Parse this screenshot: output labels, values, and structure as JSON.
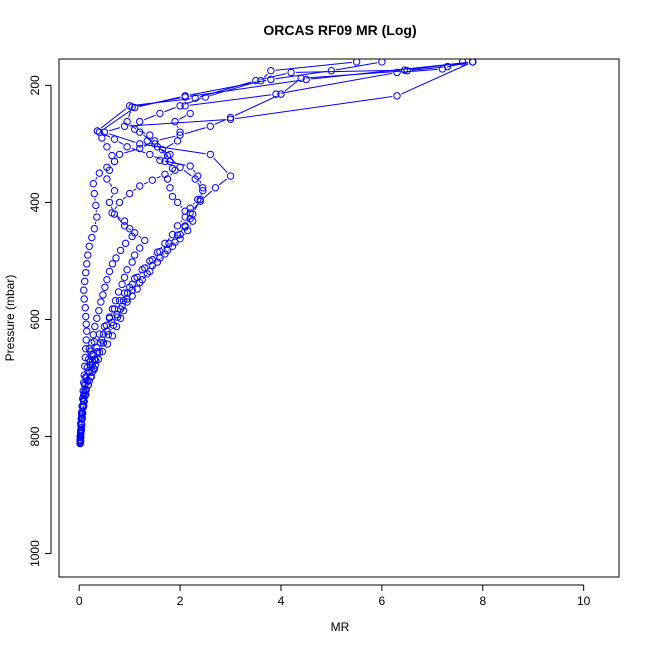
{
  "chart_data": {
    "type": "line",
    "title": "ORCAS RF09 MR (Log)",
    "xlabel": "MR",
    "ylabel": "Pressure (mbar)",
    "xlim": [
      -0.4,
      10.7
    ],
    "ylim": [
      1040,
      155
    ],
    "y_axis_inverted": true,
    "x_ticks": [
      0,
      2,
      4,
      6,
      8,
      10
    ],
    "y_ticks": [
      200,
      400,
      600,
      800,
      1000
    ],
    "grid": false,
    "legend": "none",
    "marker": "open-circle",
    "color": "#0000ff",
    "series": [
      {
        "points": [
          [
            0.02,
            812
          ],
          [
            0.03,
            808
          ],
          [
            0.02,
            800
          ],
          [
            0.03,
            792
          ],
          [
            0.04,
            785
          ],
          [
            0.03,
            778
          ],
          [
            0.04,
            770
          ],
          [
            0.05,
            758
          ],
          [
            0.06,
            748
          ],
          [
            0.08,
            738
          ],
          [
            0.1,
            725
          ],
          [
            0.12,
            710
          ],
          [
            0.14,
            700
          ],
          [
            0.18,
            688
          ],
          [
            0.22,
            678
          ],
          [
            0.26,
            672
          ],
          [
            0.3,
            668
          ],
          [
            0.25,
            660
          ],
          [
            0.2,
            650
          ],
          [
            0.3,
            638
          ],
          [
            0.4,
            625
          ],
          [
            0.5,
            612
          ],
          [
            0.6,
            598
          ],
          [
            0.7,
            582
          ],
          [
            0.8,
            568
          ],
          [
            0.9,
            555
          ],
          [
            1.0,
            545
          ],
          [
            1.1,
            530
          ],
          [
            1.25,
            515
          ],
          [
            1.4,
            500
          ],
          [
            1.55,
            485
          ],
          [
            1.7,
            470
          ],
          [
            1.85,
            455
          ],
          [
            1.95,
            440
          ],
          [
            2.1,
            425
          ],
          [
            2.2,
            410
          ],
          [
            2.35,
            395
          ],
          [
            2.45,
            380
          ],
          [
            2.3,
            360
          ],
          [
            2.0,
            340
          ],
          [
            1.75,
            320
          ],
          [
            1.5,
            300
          ],
          [
            1.2,
            280
          ],
          [
            0.95,
            262
          ],
          [
            1.05,
            237
          ],
          [
            2.1,
            220
          ],
          [
            4.5,
            190
          ],
          [
            7.8,
            160
          ]
        ]
      },
      {
        "points": [
          [
            0.02,
            810
          ],
          [
            0.03,
            800
          ],
          [
            0.04,
            790
          ],
          [
            0.06,
            770
          ],
          [
            0.08,
            750
          ],
          [
            0.12,
            730
          ],
          [
            0.18,
            712
          ],
          [
            0.24,
            698
          ],
          [
            0.3,
            685
          ],
          [
            0.22,
            672
          ],
          [
            0.28,
            660
          ],
          [
            0.35,
            648
          ],
          [
            0.45,
            635
          ],
          [
            0.55,
            620
          ],
          [
            0.65,
            605
          ],
          [
            0.75,
            592
          ],
          [
            0.85,
            578
          ],
          [
            0.95,
            565
          ],
          [
            1.05,
            550
          ],
          [
            1.2,
            537
          ],
          [
            1.35,
            522
          ],
          [
            1.45,
            508
          ],
          [
            1.6,
            495
          ],
          [
            1.75,
            482
          ],
          [
            1.9,
            468
          ],
          [
            2.0,
            455
          ],
          [
            2.1,
            442
          ],
          [
            2.2,
            428
          ],
          [
            2.1,
            415
          ],
          [
            1.95,
            400
          ],
          [
            1.85,
            390
          ],
          [
            1.8,
            375
          ],
          [
            1.75,
            360
          ],
          [
            1.9,
            345
          ],
          [
            1.8,
            330
          ],
          [
            1.65,
            310
          ],
          [
            1.95,
            295
          ],
          [
            2.0,
            280
          ],
          [
            1.9,
            262
          ],
          [
            2.2,
            248
          ],
          [
            2.1,
            235
          ],
          [
            3.9,
            215
          ],
          [
            6.3,
            178
          ],
          [
            7.2,
            172
          ],
          [
            7.6,
            160
          ]
        ]
      },
      {
        "points": [
          [
            0.02,
            805
          ],
          [
            0.03,
            795
          ],
          [
            0.05,
            780
          ],
          [
            0.07,
            760
          ],
          [
            0.1,
            740
          ],
          [
            0.14,
            720
          ],
          [
            0.2,
            705
          ],
          [
            0.26,
            690
          ],
          [
            0.32,
            678
          ],
          [
            0.38,
            668
          ],
          [
            0.46,
            655
          ],
          [
            0.56,
            642
          ],
          [
            0.66,
            628
          ],
          [
            0.74,
            612
          ],
          [
            0.82,
            598
          ],
          [
            0.88,
            585
          ],
          [
            0.95,
            570
          ],
          [
            1.05,
            560
          ],
          [
            1.15,
            548
          ],
          [
            1.25,
            532
          ],
          [
            1.4,
            518
          ],
          [
            1.55,
            502
          ],
          [
            1.7,
            488
          ],
          [
            1.85,
            475
          ],
          [
            2.0,
            462
          ],
          [
            2.15,
            448
          ],
          [
            2.25,
            432
          ],
          [
            2.2,
            418
          ],
          [
            2.4,
            398
          ],
          [
            2.7,
            375
          ],
          [
            3.0,
            355
          ],
          [
            2.6,
            318
          ],
          [
            1.2,
            300
          ],
          [
            0.5,
            280
          ],
          [
            0.9,
            270
          ],
          [
            3.0,
            258
          ],
          [
            6.3,
            218
          ],
          [
            7.8,
            160
          ]
        ]
      },
      {
        "points": [
          [
            0.02,
            812
          ],
          [
            0.03,
            802
          ],
          [
            0.04,
            788
          ],
          [
            0.06,
            768
          ],
          [
            0.09,
            748
          ],
          [
            0.13,
            728
          ],
          [
            0.18,
            712
          ],
          [
            0.23,
            698
          ],
          [
            0.29,
            684
          ],
          [
            0.33,
            670
          ],
          [
            0.4,
            656
          ],
          [
            0.48,
            640
          ],
          [
            0.58,
            626
          ],
          [
            0.68,
            610
          ],
          [
            0.76,
            596
          ],
          [
            0.82,
            582
          ],
          [
            0.88,
            568
          ],
          [
            0.96,
            555
          ],
          [
            1.05,
            540
          ],
          [
            1.15,
            528
          ],
          [
            1.3,
            512
          ],
          [
            1.45,
            498
          ],
          [
            1.6,
            484
          ],
          [
            1.78,
            470
          ],
          [
            1.95,
            456
          ],
          [
            2.1,
            440
          ],
          [
            2.25,
            420
          ],
          [
            2.4,
            395
          ],
          [
            2.45,
            375
          ],
          [
            2.35,
            355
          ],
          [
            2.2,
            338
          ],
          [
            1.6,
            328
          ],
          [
            1.8,
            318
          ],
          [
            1.55,
            305
          ],
          [
            1.35,
            295
          ],
          [
            1.4,
            285
          ],
          [
            1.1,
            275
          ],
          [
            1.2,
            262
          ],
          [
            1.6,
            248
          ],
          [
            2.0,
            235
          ],
          [
            2.5,
            220
          ],
          [
            3.6,
            192
          ],
          [
            3.8,
            175
          ],
          [
            5.5,
            160
          ]
        ]
      },
      {
        "points": [
          [
            0.02,
            808
          ],
          [
            0.03,
            795
          ],
          [
            0.04,
            780
          ],
          [
            0.06,
            760
          ],
          [
            0.09,
            740
          ],
          [
            0.12,
            722
          ],
          [
            0.16,
            705
          ],
          [
            0.21,
            690
          ],
          [
            0.26,
            678
          ],
          [
            0.31,
            668
          ],
          [
            0.36,
            655
          ],
          [
            0.42,
            640
          ],
          [
            0.48,
            625
          ],
          [
            0.54,
            610
          ],
          [
            0.6,
            596
          ],
          [
            0.66,
            582
          ],
          [
            0.72,
            568
          ],
          [
            0.78,
            553
          ],
          [
            0.85,
            540
          ],
          [
            0.9,
            528
          ],
          [
            0.95,
            515
          ],
          [
            1.05,
            502
          ],
          [
            1.1,
            490
          ],
          [
            1.2,
            478
          ],
          [
            1.3,
            465
          ],
          [
            1.1,
            452
          ],
          [
            0.9,
            440
          ],
          [
            0.7,
            420
          ],
          [
            0.6,
            400
          ],
          [
            0.7,
            380
          ],
          [
            0.55,
            360
          ],
          [
            0.6,
            345
          ],
          [
            0.7,
            330
          ],
          [
            0.65,
            320
          ],
          [
            0.55,
            305
          ],
          [
            0.45,
            290
          ],
          [
            0.4,
            280
          ],
          [
            1.1,
            238
          ],
          [
            2.1,
            218
          ],
          [
            3.8,
            190
          ],
          [
            5.0,
            175
          ],
          [
            6.0,
            160
          ]
        ]
      },
      {
        "points": [
          [
            0.02,
            806
          ],
          [
            0.03,
            794
          ],
          [
            0.04,
            780
          ],
          [
            0.05,
            765
          ],
          [
            0.07,
            748
          ],
          [
            0.09,
            730
          ],
          [
            0.11,
            712
          ],
          [
            0.13,
            698
          ],
          [
            0.16,
            682
          ],
          [
            0.19,
            668
          ],
          [
            0.22,
            654
          ],
          [
            0.25,
            640
          ],
          [
            0.28,
            626
          ],
          [
            0.31,
            612
          ],
          [
            0.35,
            598
          ],
          [
            0.39,
            585
          ],
          [
            0.43,
            570
          ],
          [
            0.47,
            558
          ],
          [
            0.51,
            545
          ],
          [
            0.55,
            532
          ],
          [
            0.6,
            518
          ],
          [
            0.66,
            505
          ],
          [
            0.73,
            495
          ],
          [
            0.82,
            482
          ],
          [
            0.92,
            470
          ],
          [
            1.05,
            458
          ],
          [
            1.0,
            445
          ],
          [
            0.9,
            432
          ],
          [
            0.65,
            418
          ],
          [
            0.8,
            400
          ],
          [
            1.0,
            385
          ],
          [
            1.2,
            372
          ],
          [
            1.45,
            362
          ],
          [
            1.7,
            352
          ],
          [
            1.85,
            342
          ],
          [
            1.7,
            330
          ],
          [
            1.4,
            318
          ],
          [
            0.95,
            305
          ],
          [
            0.7,
            292
          ],
          [
            0.36,
            278
          ],
          [
            1.0,
            235
          ],
          [
            2.3,
            222
          ],
          [
            3.5,
            192
          ],
          [
            4.2,
            178
          ],
          [
            6.45,
            174
          ],
          [
            7.8,
            160
          ]
        ]
      },
      {
        "points": [
          [
            0.02,
            810
          ],
          [
            0.02,
            800
          ],
          [
            0.03,
            790
          ],
          [
            0.04,
            778
          ],
          [
            0.05,
            762
          ],
          [
            0.06,
            748
          ],
          [
            0.07,
            735
          ],
          [
            0.08,
            722
          ],
          [
            0.09,
            708
          ],
          [
            0.1,
            695
          ],
          [
            0.11,
            680
          ],
          [
            0.12,
            665
          ],
          [
            0.13,
            650
          ],
          [
            0.14,
            635
          ],
          [
            0.15,
            620
          ],
          [
            0.14,
            608
          ],
          [
            0.13,
            595
          ],
          [
            0.12,
            580
          ],
          [
            0.1,
            565
          ],
          [
            0.09,
            550
          ],
          [
            0.11,
            535
          ],
          [
            0.13,
            520
          ],
          [
            0.15,
            505
          ],
          [
            0.17,
            490
          ],
          [
            0.2,
            475
          ],
          [
            0.25,
            460
          ],
          [
            0.3,
            445
          ],
          [
            0.35,
            425
          ],
          [
            0.33,
            405
          ],
          [
            0.3,
            385
          ],
          [
            0.28,
            368
          ],
          [
            0.4,
            350
          ],
          [
            0.55,
            340
          ],
          [
            0.7,
            330
          ],
          [
            0.8,
            318
          ],
          [
            1.2,
            308
          ],
          [
            1.5,
            295
          ],
          [
            2.0,
            285
          ],
          [
            2.6,
            270
          ],
          [
            3.0,
            255
          ],
          [
            4.0,
            215
          ],
          [
            4.4,
            188
          ],
          [
            6.5,
            175
          ],
          [
            7.3,
            168
          ],
          [
            7.8,
            160
          ]
        ]
      }
    ]
  }
}
